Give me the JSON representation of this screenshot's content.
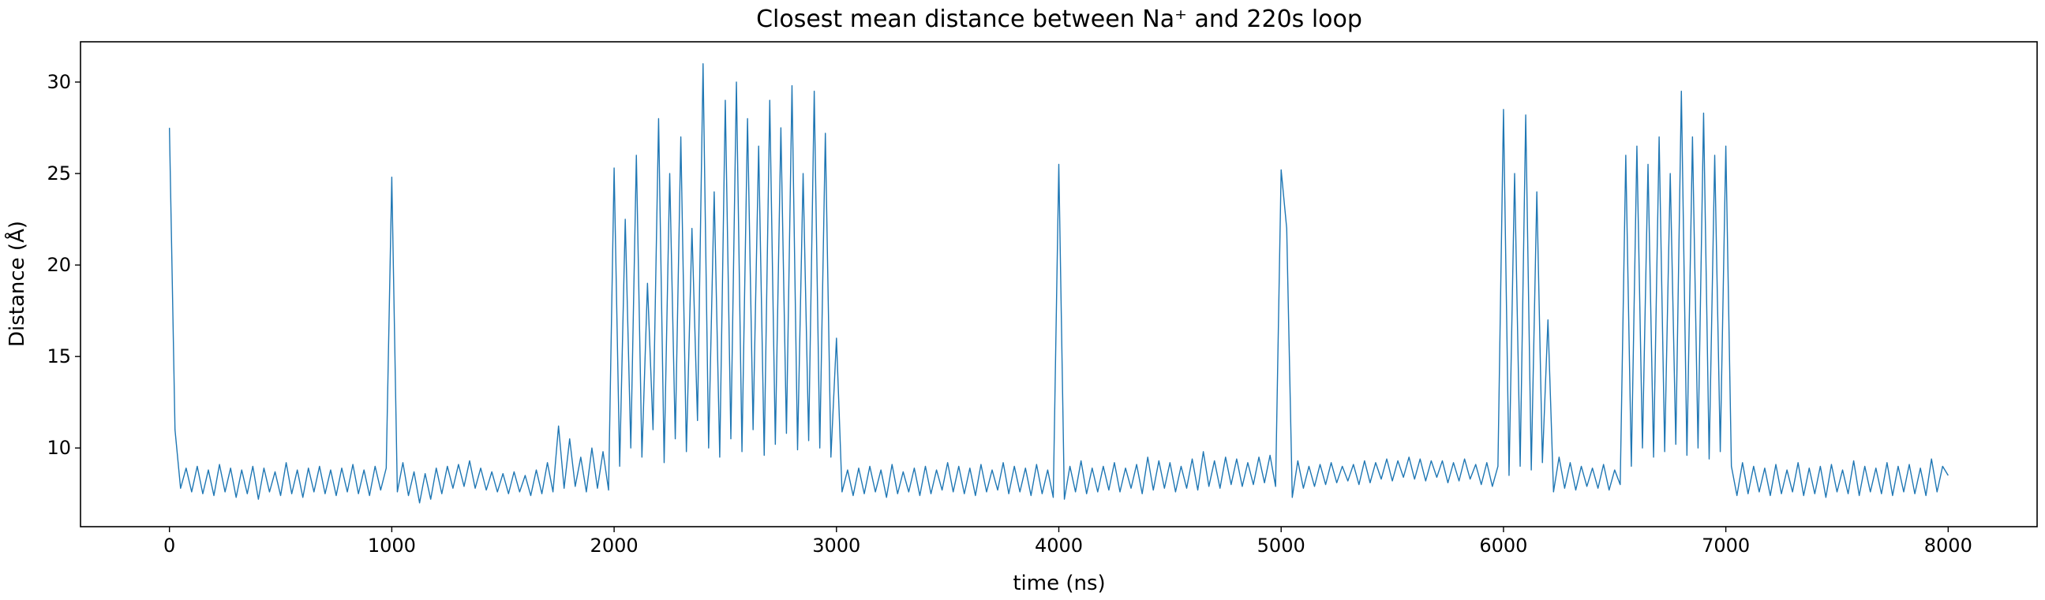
{
  "chart_data": {
    "type": "line",
    "title": "Closest mean distance between Na⁺ and 220s loop",
    "x_label": "time (ns)",
    "y_label": "Distance (Å)",
    "color": "#1f77b4",
    "xlim": [
      -400,
      8400
    ],
    "ylim": [
      5.7,
      32.2
    ],
    "xticks": [
      0,
      1000,
      2000,
      3000,
      4000,
      5000,
      6000,
      7000,
      8000
    ],
    "yticks": [
      10,
      15,
      20,
      25,
      30
    ],
    "x": [
      0,
      25,
      50,
      75,
      100,
      125,
      150,
      175,
      200,
      225,
      250,
      275,
      300,
      325,
      350,
      375,
      400,
      425,
      450,
      475,
      500,
      525,
      550,
      575,
      600,
      625,
      650,
      675,
      700,
      725,
      750,
      775,
      800,
      825,
      850,
      875,
      900,
      925,
      950,
      975,
      1000,
      1025,
      1050,
      1075,
      1100,
      1125,
      1150,
      1175,
      1200,
      1225,
      1250,
      1275,
      1300,
      1325,
      1350,
      1375,
      1400,
      1425,
      1450,
      1475,
      1500,
      1525,
      1550,
      1575,
      1600,
      1625,
      1650,
      1675,
      1700,
      1725,
      1750,
      1775,
      1800,
      1825,
      1850,
      1875,
      1900,
      1925,
      1950,
      1975,
      2000,
      2025,
      2050,
      2075,
      2100,
      2125,
      2150,
      2175,
      2200,
      2225,
      2250,
      2275,
      2300,
      2325,
      2350,
      2375,
      2400,
      2425,
      2450,
      2475,
      2500,
      2525,
      2550,
      2575,
      2600,
      2625,
      2650,
      2675,
      2700,
      2725,
      2750,
      2775,
      2800,
      2825,
      2850,
      2875,
      2900,
      2925,
      2950,
      2975,
      3000,
      3025,
      3050,
      3075,
      3100,
      3125,
      3150,
      3175,
      3200,
      3225,
      3250,
      3275,
      3300,
      3325,
      3350,
      3375,
      3400,
      3425,
      3450,
      3475,
      3500,
      3525,
      3550,
      3575,
      3600,
      3625,
      3650,
      3675,
      3700,
      3725,
      3750,
      3775,
      3800,
      3825,
      3850,
      3875,
      3900,
      3925,
      3950,
      3975,
      4000,
      4025,
      4050,
      4075,
      4100,
      4125,
      4150,
      4175,
      4200,
      4225,
      4250,
      4275,
      4300,
      4325,
      4350,
      4375,
      4400,
      4425,
      4450,
      4475,
      4500,
      4525,
      4550,
      4575,
      4600,
      4625,
      4650,
      4675,
      4700,
      4725,
      4750,
      4775,
      4800,
      4825,
      4850,
      4875,
      4900,
      4925,
      4950,
      4975,
      5000,
      5025,
      5050,
      5075,
      5100,
      5125,
      5150,
      5175,
      5200,
      5225,
      5250,
      5275,
      5300,
      5325,
      5350,
      5375,
      5400,
      5425,
      5450,
      5475,
      5500,
      5525,
      5550,
      5575,
      5600,
      5625,
      5650,
      5675,
      5700,
      5725,
      5750,
      5775,
      5800,
      5825,
      5850,
      5875,
      5900,
      5925,
      5950,
      5975,
      6000,
      6025,
      6050,
      6075,
      6100,
      6125,
      6150,
      6175,
      6200,
      6225,
      6250,
      6275,
      6300,
      6325,
      6350,
      6375,
      6400,
      6425,
      6450,
      6475,
      6500,
      6525,
      6550,
      6575,
      6600,
      6625,
      6650,
      6675,
      6700,
      6725,
      6750,
      6775,
      6800,
      6825,
      6850,
      6875,
      6900,
      6925,
      6950,
      6975,
      7000,
      7025,
      7050,
      7075,
      7100,
      7125,
      7150,
      7175,
      7200,
      7225,
      7250,
      7275,
      7300,
      7325,
      7350,
      7375,
      7400,
      7425,
      7450,
      7475,
      7500,
      7525,
      7550,
      7575,
      7600,
      7625,
      7650,
      7675,
      7700,
      7725,
      7750,
      7775,
      7800,
      7825,
      7850,
      7875,
      7900,
      7925,
      7950,
      7975,
      8000
    ],
    "values": [
      27.5,
      11.0,
      7.8,
      8.9,
      7.6,
      9.0,
      7.5,
      8.8,
      7.4,
      9.1,
      7.6,
      8.9,
      7.3,
      8.8,
      7.5,
      9.0,
      7.2,
      8.9,
      7.6,
      8.7,
      7.4,
      9.2,
      7.5,
      8.8,
      7.3,
      8.9,
      7.6,
      9.0,
      7.5,
      8.8,
      7.4,
      8.9,
      7.6,
      9.1,
      7.5,
      8.8,
      7.4,
      9.0,
      7.7,
      8.9,
      24.8,
      7.6,
      9.2,
      7.4,
      8.7,
      7.0,
      8.6,
      7.2,
      8.9,
      7.5,
      9.0,
      7.8,
      9.1,
      7.9,
      9.3,
      7.8,
      8.9,
      7.7,
      8.7,
      7.6,
      8.6,
      7.5,
      8.7,
      7.6,
      8.5,
      7.4,
      8.8,
      7.5,
      9.2,
      7.6,
      11.2,
      7.8,
      10.5,
      7.9,
      9.5,
      7.6,
      10.0,
      7.8,
      9.8,
      7.7,
      25.3,
      9.0,
      22.5,
      10.0,
      26.0,
      9.5,
      19.0,
      11.0,
      28.0,
      9.2,
      25.0,
      10.5,
      27.0,
      9.8,
      22.0,
      11.5,
      31.0,
      10.0,
      24.0,
      9.5,
      29.0,
      10.5,
      30.0,
      9.8,
      28.0,
      11.0,
      26.5,
      9.6,
      29.0,
      10.2,
      27.5,
      10.8,
      29.8,
      9.9,
      25.0,
      10.4,
      29.5,
      10.0,
      27.2,
      9.5,
      16.0,
      7.6,
      8.8,
      7.4,
      8.9,
      7.5,
      9.0,
      7.6,
      8.8,
      7.3,
      9.1,
      7.5,
      8.7,
      7.6,
      8.9,
      7.4,
      9.0,
      7.5,
      8.8,
      7.7,
      9.2,
      7.6,
      9.0,
      7.5,
      8.9,
      7.4,
      9.1,
      7.6,
      8.8,
      7.7,
      9.2,
      7.5,
      9.0,
      7.6,
      8.9,
      7.4,
      9.1,
      7.5,
      8.8,
      7.3,
      25.5,
      7.2,
      9.0,
      7.6,
      9.3,
      7.5,
      8.9,
      7.6,
      9.0,
      7.7,
      9.2,
      7.6,
      8.9,
      7.8,
      9.1,
      7.5,
      9.5,
      7.7,
      9.3,
      7.8,
      9.2,
      7.6,
      9.0,
      7.8,
      9.4,
      7.7,
      9.8,
      7.9,
      9.3,
      7.8,
      9.5,
      8.0,
      9.4,
      7.9,
      9.2,
      8.0,
      9.5,
      8.1,
      9.6,
      7.9,
      25.2,
      22.0,
      7.3,
      9.3,
      7.8,
      9.0,
      7.9,
      9.1,
      8.0,
      9.2,
      8.1,
      9.0,
      8.2,
      9.1,
      8.0,
      9.3,
      8.1,
      9.2,
      8.3,
      9.4,
      8.2,
      9.3,
      8.4,
      9.5,
      8.3,
      9.4,
      8.2,
      9.3,
      8.4,
      9.3,
      8.1,
      9.2,
      8.2,
      9.4,
      8.3,
      9.1,
      8.0,
      9.2,
      7.9,
      9.0,
      28.5,
      8.5,
      25.0,
      9.0,
      28.2,
      8.8,
      24.0,
      9.2,
      17.0,
      7.6,
      9.5,
      7.8,
      9.2,
      7.7,
      9.0,
      7.9,
      8.9,
      7.8,
      9.1,
      7.7,
      8.8,
      8.0,
      26.0,
      9.0,
      26.5,
      10.0,
      25.5,
      9.5,
      27.0,
      9.8,
      25.0,
      10.2,
      29.5,
      9.6,
      27.0,
      10.0,
      28.3,
      9.4,
      26.0,
      9.8,
      26.5,
      9.0,
      7.4,
      9.2,
      7.5,
      9.0,
      7.6,
      8.9,
      7.4,
      9.1,
      7.5,
      8.8,
      7.6,
      9.2,
      7.4,
      8.9,
      7.5,
      9.0,
      7.3,
      9.1,
      7.6,
      8.8,
      7.5,
      9.3,
      7.4,
      9.0,
      7.6,
      8.9,
      7.5,
      9.2,
      7.4,
      9.0,
      7.6,
      9.1,
      7.5,
      8.9,
      7.4,
      9.4,
      7.6,
      9.0,
      8.5
    ]
  }
}
